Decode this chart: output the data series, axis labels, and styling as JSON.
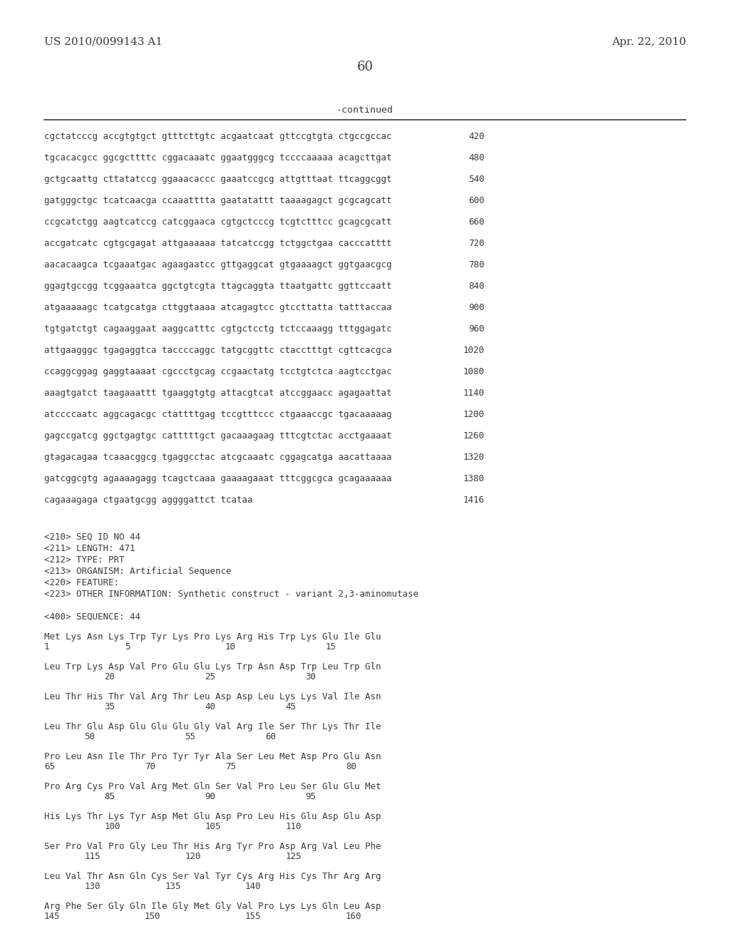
{
  "header_left": "US 2010/0099143 A1",
  "header_right": "Apr. 22, 2010",
  "page_number": "60",
  "continued_label": "-continued",
  "background_color": "#ffffff",
  "sequence_lines": [
    [
      "cgctatcccg accgtgtgct gtttcttgtc acgaatcaat gttccgtgta ctgccgccac",
      "420"
    ],
    [
      "tgcacacgcc ggcgcttttc cggacaaatc ggaatgggcg tccccaaaaa acagcttgat",
      "480"
    ],
    [
      "gctgcaattg cttatatccg ggaaacaccc gaaatccgcg attgtttaat ttcaggcggt",
      "540"
    ],
    [
      "gatgggctgc tcatcaacga ccaaatttta gaatatattt taaaagagct gcgcagcatt",
      "600"
    ],
    [
      "ccgcatctgg aagtcatccg catcggaaca cgtgctcccg tcgtctttcc gcagcgcatt",
      "660"
    ],
    [
      "accgatcatc cgtgcgagat attgaaaaaa tatcatccgg tctggctgaa cacccatttt",
      "720"
    ],
    [
      "aacacaagca tcgaaatgac agaagaatcc gttgaggcat gtgaaaagct ggtgaacgcg",
      "780"
    ],
    [
      "ggagtgccgg tcggaaatca ggctgtcgta ttagcaggta ttaatgattc ggttccaatt",
      "840"
    ],
    [
      "atgaaaaagc tcatgcatga cttggtaaaa atcagagtcc gtccttatta tatttaccaa",
      "900"
    ],
    [
      "tgtgatctgt cagaaggaat aaggcatttc cgtgctcctg tctccaaagg tttggagatc",
      "960"
    ],
    [
      "attgaagggc tgagaggtca taccccaggc tatgcggttc ctacctttgt cgttcacgca",
      "1020"
    ],
    [
      "ccaggcggag gaggtaaaat cgccctgcag ccgaactatg tcctgtctca aagtcctgac",
      "1080"
    ],
    [
      "aaagtgatct taagaaattt tgaaggtgtg attacgtcat atccggaacc agagaattat",
      "1140"
    ],
    [
      "atccccaatc aggcagacgc ctattttgag tccgtttccc ctgaaaccgc tgacaaaaag",
      "1200"
    ],
    [
      "gagccgatcg ggctgagtgc catttttgct gacaaagaag tttcgtctac acctgaaaat",
      "1260"
    ],
    [
      "gtagacagaa tcaaacggcg tgaggcctac atcgcaaatc cggagcatga aacattaaaa",
      "1320"
    ],
    [
      "gatcggcgtg agaaaagagg tcagctcaaa gaaaagaaat tttcggcgca gcagaaaaaa",
      "1380"
    ],
    [
      "cagaaagaga ctgaatgcgg aggggattct tcataa",
      "1416"
    ]
  ],
  "metadata_lines": [
    "<210> SEQ ID NO 44",
    "<211> LENGTH: 471",
    "<212> TYPE: PRT",
    "<213> ORGANISM: Artificial Sequence",
    "<220> FEATURE:",
    "<223> OTHER INFORMATION: Synthetic construct - variant 2,3-aminomutase"
  ],
  "sequence_header": "<400> SEQUENCE: 44",
  "protein_blocks": [
    {
      "seq": "Met Lys Asn Lys Trp Tyr Lys Pro Lys Arg His Trp Lys Glu Ile Glu",
      "nums": [
        [
          "1",
          0
        ],
        [
          "5",
          3
        ],
        [
          "10",
          6
        ],
        [
          "15",
          12
        ]
      ]
    },
    {
      "seq": "Leu Trp Lys Asp Val Pro Glu Glu Lys Trp Asn Asp Trp Leu Trp Gln",
      "nums": [
        [
          "20",
          2
        ],
        [
          "25",
          6
        ],
        [
          "30",
          10
        ]
      ]
    },
    {
      "seq": "Leu Thr His Thr Val Arg Thr Leu Asp Asp Leu Lys Lys Val Ile Asn",
      "nums": [
        [
          "35",
          2
        ],
        [
          "40",
          6
        ],
        [
          "45",
          9
        ]
      ]
    },
    {
      "seq": "Leu Thr Glu Asp Glu Glu Glu Gly Val Arg Ile Ser Thr Lys Thr Ile",
      "nums": [
        [
          "50",
          1
        ],
        [
          "55",
          5
        ],
        [
          "60",
          9
        ]
      ]
    },
    {
      "seq": "Pro Leu Asn Ile Thr Pro Tyr Tyr Ala Ser Leu Met Asp Pro Glu Asn",
      "nums": [
        [
          "65",
          0
        ],
        [
          "70",
          4
        ],
        [
          "75",
          8
        ],
        [
          "80",
          14
        ]
      ]
    },
    {
      "seq": "Pro Arg Cys Pro Val Arg Met Gln Ser Val Pro Leu Ser Glu Glu Met",
      "nums": [
        [
          "85",
          2
        ],
        [
          "90",
          6
        ],
        [
          "95",
          11
        ]
      ]
    },
    {
      "seq": "His Lys Thr Lys Tyr Asp Met Glu Asp Pro Leu His Glu Asp Glu Asp",
      "nums": [
        [
          "100",
          2
        ],
        [
          "105",
          6
        ],
        [
          "110",
          10
        ]
      ]
    },
    {
      "seq": "Ser Pro Val Pro Gly Leu Thr His Arg Tyr Pro Asp Arg Val Leu Phe",
      "nums": [
        [
          "115",
          1
        ],
        [
          "120",
          5
        ],
        [
          "125",
          10
        ]
      ]
    },
    {
      "seq": "Leu Val Thr Asn Gln Cys Ser Val Tyr Cys Arg His Cys Thr Arg Arg",
      "nums": [
        [
          "130",
          1
        ],
        [
          "135",
          5
        ],
        [
          "140",
          9
        ]
      ]
    },
    {
      "seq": "Arg Phe Ser Gly Gln Ile Gly Met Gly Val Pro Lys Lys Gln Leu Asp",
      "nums": [
        [
          "145",
          0
        ],
        [
          "150",
          4
        ],
        [
          "155",
          8
        ],
        [
          "160",
          14
        ]
      ]
    }
  ]
}
